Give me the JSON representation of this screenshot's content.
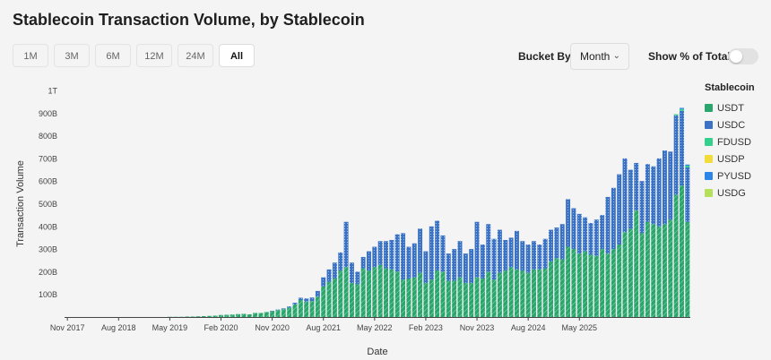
{
  "title": "Stablecoin Transaction Volume, by Stablecoin",
  "ranges": [
    "1M",
    "3M",
    "6M",
    "12M",
    "24M",
    "All"
  ],
  "active_range": "All",
  "controls": {
    "bucket_label": "Bucket By",
    "bucket_value": "Month",
    "pct_label": "Show % of Total",
    "pct_enabled": false
  },
  "legend": {
    "title": "Stablecoin",
    "items": [
      {
        "name": "USDT",
        "color": "#2aa66d"
      },
      {
        "name": "USDC",
        "color": "#3b72c4"
      },
      {
        "name": "FDUSD",
        "color": "#35d08e"
      },
      {
        "name": "USDP",
        "color": "#f2dc3a"
      },
      {
        "name": "PYUSD",
        "color": "#2c86e8"
      },
      {
        "name": "USDG",
        "color": "#b5e05c"
      }
    ]
  },
  "chart_data": {
    "type": "bar",
    "stacked": true,
    "xlabel": "Date",
    "ylabel": "Transaction Volume",
    "ylim": [
      0,
      1000
    ],
    "y_unit": "B",
    "y_ticks": [
      100,
      200,
      300,
      400,
      500,
      600,
      700,
      800,
      900,
      1000
    ],
    "y_tick_labels": [
      "100B",
      "200B",
      "300B",
      "400B",
      "500B",
      "600B",
      "700B",
      "800B",
      "900B",
      "1T"
    ],
    "x_tick_labels": [
      "Nov 2017",
      "Aug 2018",
      "May 2019",
      "Feb 2020",
      "Nov 2020",
      "Aug 2021",
      "May 2022",
      "Feb 2023",
      "Nov 2023",
      "Aug 2024",
      "May 2025"
    ],
    "x_tick_months": [
      "2017-11",
      "2018-08",
      "2019-05",
      "2020-02",
      "2020-11",
      "2021-08",
      "2022-05",
      "2023-02",
      "2023-11",
      "2024-08",
      "2025-05"
    ],
    "x_start": "2017-11",
    "legend_position": "right",
    "grid": false,
    "series": [
      {
        "name": "USDT",
        "values": [
          0,
          0,
          0,
          0,
          0,
          0,
          0,
          0,
          0,
          0,
          0,
          0,
          0,
          0,
          0,
          0,
          0,
          0,
          1,
          1,
          1,
          2,
          2,
          3,
          4,
          5,
          6,
          9,
          10,
          11,
          13,
          14,
          12,
          18,
          18,
          22,
          26,
          31,
          35,
          42,
          55,
          75,
          68,
          70,
          90,
          135,
          155,
          170,
          205,
          220,
          150,
          145,
          215,
          205,
          220,
          230,
          215,
          210,
          200,
          165,
          170,
          175,
          195,
          150,
          165,
          205,
          200,
          160,
          160,
          175,
          150,
          150,
          175,
          170,
          200,
          165,
          195,
          205,
          220,
          210,
          205,
          195,
          210,
          210,
          215,
          245,
          260,
          255,
          310,
          300,
          280,
          290,
          275,
          270,
          300,
          280,
          300,
          320,
          375,
          390,
          470,
          370,
          420,
          410,
          400,
          410,
          430,
          540,
          580,
          420
        ]
      },
      {
        "name": "USDC",
        "values": [
          0,
          0,
          0,
          0,
          0,
          0,
          0,
          0,
          0,
          0,
          0,
          0,
          0,
          0,
          0,
          0,
          0,
          0,
          0,
          0,
          0,
          0,
          0,
          0,
          0,
          0,
          0,
          0,
          0,
          0,
          0,
          0,
          0,
          0,
          0,
          0,
          1,
          2,
          3,
          5,
          8,
          10,
          14,
          16,
          25,
          40,
          55,
          70,
          80,
          200,
          90,
          55,
          50,
          85,
          90,
          105,
          120,
          130,
          165,
          205,
          140,
          150,
          195,
          140,
          235,
          220,
          160,
          120,
          140,
          160,
          130,
          150,
          245,
          150,
          210,
          180,
          190,
          135,
          130,
          170,
          130,
          125,
          125,
          110,
          130,
          140,
          135,
          155,
          210,
          180,
          175,
          150,
          140,
          160,
          150,
          250,
          270,
          310,
          325,
          260,
          210,
          230,
          255,
          255,
          300,
          325,
          300,
          350,
          330,
          240
        ]
      },
      {
        "name": "FDUSD",
        "values": [
          0,
          0,
          0,
          0,
          0,
          0,
          0,
          0,
          0,
          0,
          0,
          0,
          0,
          0,
          0,
          0,
          0,
          0,
          0,
          0,
          0,
          0,
          0,
          0,
          0,
          0,
          0,
          0,
          0,
          0,
          0,
          0,
          0,
          0,
          0,
          0,
          0,
          0,
          0,
          0,
          0,
          0,
          0,
          0,
          0,
          0,
          0,
          0,
          0,
          0,
          0,
          0,
          0,
          0,
          0,
          0,
          0,
          0,
          0,
          0,
          0,
          0,
          0,
          0,
          0,
          0,
          0,
          0,
          0,
          0,
          0,
          0,
          0,
          0,
          0,
          0,
          0,
          0,
          0,
          0,
          0,
          0,
          0,
          0,
          0,
          0,
          0,
          0,
          0,
          0,
          0,
          0,
          0,
          0,
          0,
          0,
          0,
          0,
          0,
          0,
          0,
          0,
          0,
          0,
          0,
          0,
          0,
          5,
          8,
          8
        ]
      },
      {
        "name": "USDP",
        "values": [
          0,
          0,
          0,
          0,
          0,
          0,
          0,
          0,
          0,
          0,
          0,
          0,
          0,
          0,
          0,
          0,
          0,
          0,
          0,
          0,
          0,
          0,
          0,
          0,
          0,
          0,
          0,
          0,
          0,
          0,
          0,
          0,
          0,
          0,
          0,
          0,
          0,
          0,
          0,
          0,
          0,
          0,
          0,
          0,
          0,
          0,
          0,
          0,
          0,
          0,
          0,
          0,
          0,
          0,
          0,
          0,
          0,
          0,
          0,
          0,
          0,
          0,
          0,
          0,
          0,
          0,
          0,
          0,
          0,
          0,
          0,
          0,
          0,
          0,
          0,
          0,
          0,
          0,
          0,
          0,
          0,
          0,
          0,
          0,
          0,
          0,
          0,
          0,
          0,
          0,
          0,
          0,
          0,
          0,
          0,
          0,
          0,
          0,
          0,
          0,
          0,
          0,
          0,
          0,
          0,
          0,
          0,
          0,
          0,
          0
        ]
      },
      {
        "name": "PYUSD",
        "values": [
          0,
          0,
          0,
          0,
          0,
          0,
          0,
          0,
          0,
          0,
          0,
          0,
          0,
          0,
          0,
          0,
          0,
          0,
          0,
          0,
          0,
          0,
          0,
          0,
          0,
          0,
          0,
          0,
          0,
          0,
          0,
          0,
          0,
          0,
          0,
          0,
          0,
          0,
          0,
          0,
          0,
          0,
          0,
          0,
          0,
          0,
          0,
          0,
          0,
          0,
          0,
          0,
          0,
          0,
          0,
          0,
          0,
          0,
          0,
          0,
          0,
          0,
          0,
          0,
          0,
          0,
          0,
          0,
          0,
          0,
          0,
          0,
          0,
          0,
          0,
          0,
          0,
          0,
          0,
          0,
          0,
          0,
          0,
          0,
          0,
          0,
          0,
          0,
          0,
          0,
          0,
          0,
          0,
          0,
          0,
          0,
          0,
          0,
          0,
          0,
          0,
          0,
          0,
          0,
          0,
          0,
          0,
          0,
          5,
          5
        ]
      },
      {
        "name": "USDG",
        "values": [
          0,
          0,
          0,
          0,
          0,
          0,
          0,
          0,
          0,
          0,
          0,
          0,
          0,
          0,
          0,
          0,
          0,
          0,
          0,
          0,
          0,
          0,
          0,
          0,
          0,
          0,
          0,
          0,
          0,
          0,
          0,
          0,
          0,
          0,
          0,
          0,
          0,
          0,
          0,
          0,
          0,
          0,
          0,
          0,
          0,
          0,
          0,
          0,
          0,
          0,
          0,
          0,
          0,
          0,
          0,
          0,
          0,
          0,
          0,
          0,
          0,
          0,
          0,
          0,
          0,
          0,
          0,
          0,
          0,
          0,
          0,
          0,
          0,
          0,
          0,
          0,
          0,
          0,
          0,
          0,
          0,
          0,
          0,
          0,
          0,
          0,
          0,
          0,
          0,
          0,
          0,
          0,
          0,
          0,
          0,
          0,
          0,
          0,
          0,
          0,
          0,
          0,
          0,
          0,
          0,
          0,
          0,
          0,
          0,
          0
        ]
      }
    ]
  }
}
